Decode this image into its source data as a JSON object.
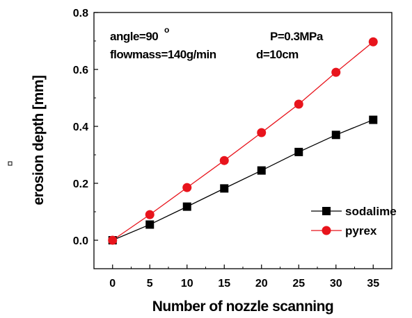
{
  "chart_data": {
    "type": "line",
    "title": "",
    "xlabel": "Number of nozzle scanning",
    "ylabel": "erosion depth [mm]",
    "xlim": [
      -2.5,
      37.5
    ],
    "ylim": [
      -0.1,
      0.8
    ],
    "x_ticks": [
      0,
      5,
      10,
      15,
      20,
      25,
      30,
      35
    ],
    "y_ticks": [
      0.0,
      0.2,
      0.4,
      0.6,
      0.8
    ],
    "y_tick_labels": [
      "0.0",
      "0.2",
      "0.4",
      "0.6",
      "0.8"
    ],
    "grid": false,
    "legend_position": "bottom-right",
    "x": [
      0,
      5,
      10,
      15,
      20,
      25,
      30,
      35
    ],
    "series": [
      {
        "name": "sodalime",
        "color": "#000000",
        "marker": "square",
        "values": [
          0.0,
          0.055,
          0.118,
          0.182,
          0.245,
          0.31,
          0.37,
          0.423
        ]
      },
      {
        "name": "pyrex",
        "color": "#e8141c",
        "marker": "circle",
        "values": [
          0.0,
          0.09,
          0.185,
          0.28,
          0.378,
          0.478,
          0.59,
          0.697
        ]
      }
    ],
    "annotations": {
      "angle": "angle=90",
      "angle_degree": "o",
      "flow": "flowmass=140g/min",
      "pressure": "P=0.3MPa",
      "distance": "d=10cm"
    }
  }
}
